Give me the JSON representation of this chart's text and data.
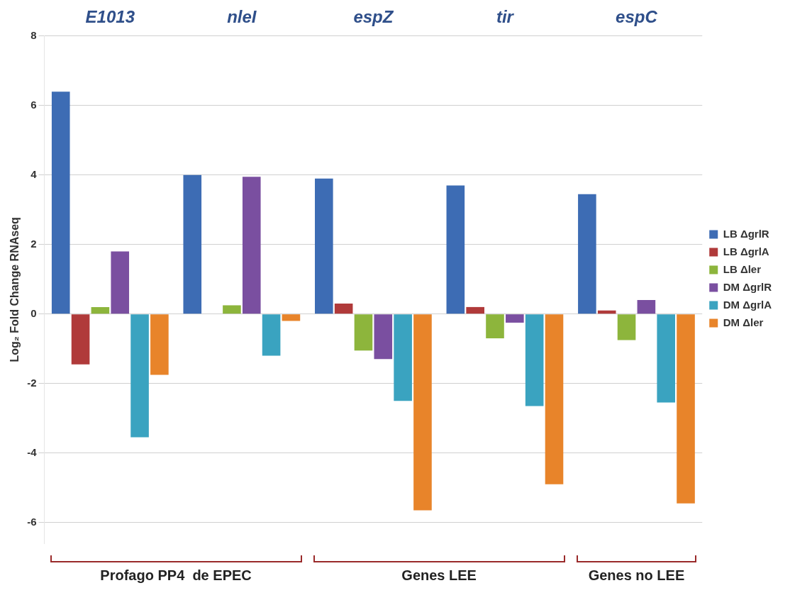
{
  "chart_data": {
    "type": "bar",
    "ylabel": "Log₂ Fold Change RNAseq",
    "categories": [
      "E1013",
      "nleI",
      "espZ",
      "tir",
      "espC"
    ],
    "series": [
      {
        "name": "LB ΔgrlR",
        "color": "#3d6cb4",
        "values": [
          6.4,
          4.0,
          3.9,
          3.7,
          3.45
        ]
      },
      {
        "name": "LB ΔgrlA",
        "color": "#b03a3a",
        "values": [
          -1.45,
          null,
          0.3,
          0.2,
          0.1
        ]
      },
      {
        "name": "LB Δler",
        "color": "#8db53c",
        "values": [
          0.2,
          0.25,
          -1.05,
          -0.7,
          -0.75
        ]
      },
      {
        "name": "DM ΔgrlR",
        "color": "#7a4fa0",
        "values": [
          1.8,
          3.95,
          -1.3,
          -0.25,
          0.4
        ]
      },
      {
        "name": "DM ΔgrlA",
        "color": "#3aa3c0",
        "values": [
          -3.55,
          -1.2,
          -2.5,
          -2.65,
          -2.55
        ]
      },
      {
        "name": "DM Δler",
        "color": "#e8842a",
        "values": [
          -1.75,
          -0.2,
          -5.65,
          -4.9,
          -5.45
        ]
      }
    ],
    "ylim": [
      -6.6,
      8
    ],
    "yticks": [
      -6,
      -4,
      -2,
      0,
      2,
      4,
      6,
      8
    ],
    "grid": "y",
    "legend": "right",
    "annotations": [
      "Profago PP4  de EPEC",
      "Genes LEE",
      "Genes no LEE"
    ]
  }
}
